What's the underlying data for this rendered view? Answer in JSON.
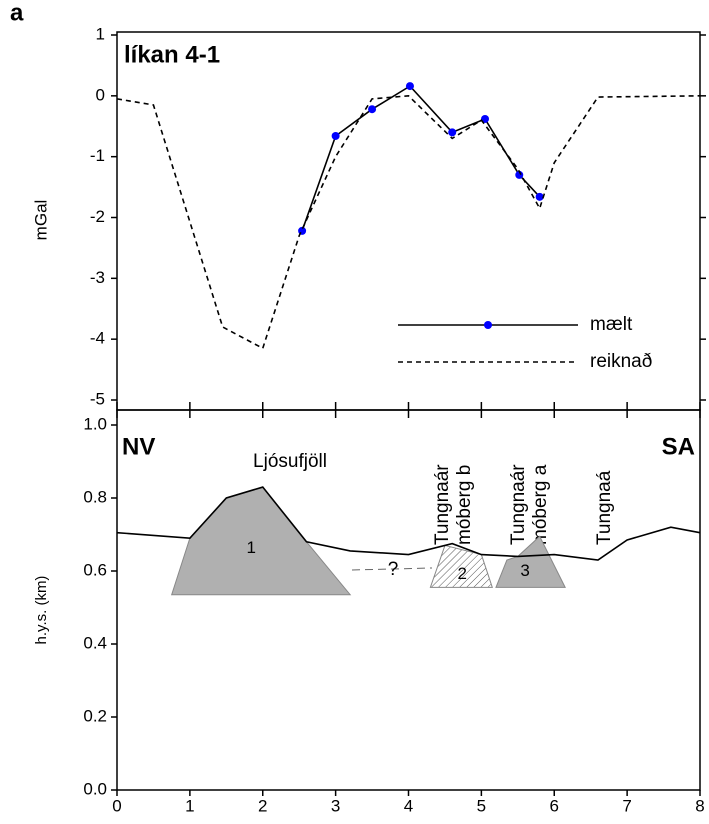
{
  "chart_data": [
    {
      "type": "line",
      "panel_label": "a",
      "title": "líkan 4-1",
      "y_label": "mGal",
      "xlim": [
        0,
        8
      ],
      "xticks": [
        0,
        1,
        2,
        3,
        4,
        5,
        6,
        7,
        8
      ],
      "ylim": [
        -5,
        1
      ],
      "yticks": [
        -5,
        -4,
        -3,
        -2,
        -1,
        0,
        1
      ],
      "legend": "lower right",
      "series": [
        {
          "name": "mælt",
          "color": "#000000",
          "marker_color": "#0000ff",
          "dashed": false,
          "markers": true,
          "x": [
            2.54,
            3.0,
            3.5,
            4.02,
            4.6,
            5.05,
            5.52,
            5.8
          ],
          "values": [
            -2.22,
            -0.66,
            -0.22,
            0.16,
            -0.6,
            -0.38,
            -1.3,
            -1.66
          ]
        },
        {
          "name": "reiknað",
          "color": "#000000",
          "dashed": true,
          "markers": false,
          "x": [
            0,
            0.5,
            1.45,
            2.0,
            2.5,
            3.0,
            3.5,
            4.0,
            4.6,
            5.0,
            5.5,
            5.8,
            6.0,
            6.6,
            8.0
          ],
          "values": [
            -0.05,
            -0.15,
            -3.8,
            -4.15,
            -2.3,
            -1.0,
            -0.05,
            0.0,
            -0.7,
            -0.4,
            -1.2,
            -1.85,
            -1.1,
            -0.02,
            0.0
          ]
        }
      ]
    },
    {
      "type": "profile",
      "y_label": "h.y.s. (km)",
      "xlim": [
        0,
        8
      ],
      "xticks": [
        0,
        1,
        2,
        3,
        4,
        5,
        6,
        7,
        8
      ],
      "ylim": [
        0,
        1
      ],
      "yticks": [
        {
          "value": 0,
          "label": "0.0"
        },
        0.2,
        0.4,
        0.6,
        0.8,
        {
          "value": 1,
          "label": "1.0"
        }
      ],
      "series": [
        {
          "color": "#000000",
          "x": [
            0,
            1.0,
            1.5,
            2.0,
            2.6,
            3.2,
            4.0,
            4.6,
            5.0,
            5.5,
            6.0,
            6.6,
            7.0,
            7.6,
            8.0
          ],
          "values": [
            0.705,
            0.69,
            0.8,
            0.83,
            0.68,
            0.655,
            0.645,
            0.675,
            0.645,
            0.64,
            0.645,
            0.63,
            0.685,
            0.72,
            0.705
          ]
        }
      ],
      "bodies": [
        {
          "label": "1",
          "fill": "#b0b0b0",
          "hatch": false,
          "x": [
            0.75,
            1.0,
            1.5,
            2.0,
            2.6,
            3.2
          ],
          "values": [
            0.535,
            0.69,
            0.8,
            0.83,
            0.68,
            0.535
          ]
        },
        {
          "label": "2",
          "fill": "#ffffff",
          "hatch": true,
          "x": [
            4.3,
            4.5,
            5.0,
            5.15
          ],
          "values": [
            0.555,
            0.67,
            0.645,
            0.555
          ]
        },
        {
          "label": "3",
          "fill": "#b0b0b0",
          "hatch": false,
          "x": [
            5.2,
            5.35,
            5.5,
            5.8,
            6.15
          ],
          "values": [
            0.555,
            0.63,
            0.64,
            0.695,
            0.555
          ]
        }
      ],
      "annotations": {
        "left": "NV",
        "right": "SA",
        "mountain": "Ljósufjöll",
        "unknown": "?",
        "river_b": [
          "Tungnaár",
          "móberg b"
        ],
        "river_a": [
          "Tungnaár",
          "móberg a"
        ],
        "river": "Tungnaá"
      }
    }
  ]
}
